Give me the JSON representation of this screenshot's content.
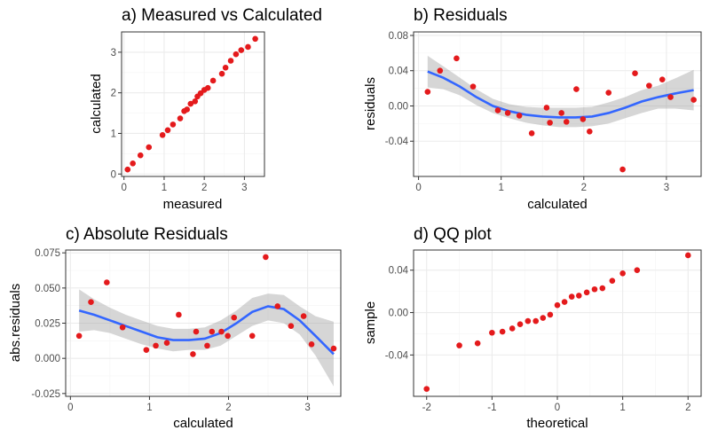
{
  "chart_data": [
    {
      "id": "a",
      "type": "scatter",
      "title": "a) Measured vs Calculated",
      "xlabel": "measured",
      "ylabel": "calculated",
      "xlim": [
        -0.06,
        3.5
      ],
      "ylim": [
        -0.06,
        3.5
      ],
      "xticks": [
        0,
        1,
        2,
        3
      ],
      "yticks": [
        0,
        1,
        2,
        3
      ],
      "xtick_labels": [
        "0",
        "1",
        "2",
        "3"
      ],
      "ytick_labels": [
        "0",
        "1",
        "2",
        "3"
      ],
      "grid": true,
      "points": [
        [
          0.09,
          0.11
        ],
        [
          0.22,
          0.26
        ],
        [
          0.41,
          0.46
        ],
        [
          0.62,
          0.66
        ],
        [
          0.96,
          0.96
        ],
        [
          1.09,
          1.08
        ],
        [
          1.22,
          1.22
        ],
        [
          1.4,
          1.37
        ],
        [
          1.5,
          1.55
        ],
        [
          1.57,
          1.59
        ],
        [
          1.66,
          1.73
        ],
        [
          1.77,
          1.79
        ],
        [
          1.83,
          1.91
        ],
        [
          1.91,
          1.99
        ],
        [
          2.0,
          2.07
        ],
        [
          2.09,
          2.12
        ],
        [
          2.22,
          2.3
        ],
        [
          2.44,
          2.47
        ],
        [
          2.53,
          2.62
        ],
        [
          2.66,
          2.79
        ],
        [
          2.79,
          2.95
        ],
        [
          2.92,
          3.05
        ],
        [
          3.09,
          3.13
        ],
        [
          3.27,
          3.33
        ]
      ]
    },
    {
      "id": "b",
      "type": "scatter",
      "title": "b) Residuals",
      "xlabel": "calculated",
      "ylabel": "residuals",
      "xlim": [
        -0.06,
        3.42
      ],
      "ylim": [
        -0.08,
        0.084
      ],
      "xticks": [
        0,
        1,
        2,
        3
      ],
      "yticks": [
        -0.04,
        0.0,
        0.04,
        0.08
      ],
      "xtick_labels": [
        "0",
        "1",
        "2",
        "3"
      ],
      "ytick_labels": [
        "-0.04",
        "0.00",
        "0.04",
        "0.08"
      ],
      "grid": true,
      "points": [
        [
          0.11,
          0.016
        ],
        [
          0.26,
          0.04
        ],
        [
          0.46,
          0.054
        ],
        [
          0.66,
          0.022
        ],
        [
          0.96,
          -0.005
        ],
        [
          1.08,
          -0.008
        ],
        [
          1.22,
          -0.011
        ],
        [
          1.37,
          -0.031
        ],
        [
          1.55,
          -0.002
        ],
        [
          1.59,
          -0.019
        ],
        [
          1.73,
          -0.008
        ],
        [
          1.79,
          -0.018
        ],
        [
          1.91,
          0.019
        ],
        [
          1.99,
          -0.015
        ],
        [
          2.07,
          -0.029
        ],
        [
          2.3,
          0.015
        ],
        [
          2.47,
          -0.072
        ],
        [
          2.62,
          0.037
        ],
        [
          2.79,
          0.023
        ],
        [
          2.95,
          0.03
        ],
        [
          3.05,
          0.01
        ],
        [
          3.33,
          0.007
        ]
      ],
      "smooth": {
        "x": [
          0.11,
          0.3,
          0.5,
          0.7,
          0.9,
          1.1,
          1.3,
          1.5,
          1.7,
          1.9,
          2.1,
          2.3,
          2.5,
          2.7,
          2.9,
          3.1,
          3.33
        ],
        "y": [
          0.039,
          0.032,
          0.022,
          0.01,
          0.0,
          -0.006,
          -0.01,
          -0.012,
          -0.013,
          -0.013,
          -0.012,
          -0.008,
          -0.002,
          0.005,
          0.01,
          0.014,
          0.018
        ],
        "lo": [
          0.021,
          0.019,
          0.012,
          0.001,
          -0.008,
          -0.014,
          -0.019,
          -0.022,
          -0.024,
          -0.024,
          -0.023,
          -0.02,
          -0.014,
          -0.008,
          -0.003,
          -0.003,
          -0.005
        ],
        "hi": [
          0.057,
          0.045,
          0.032,
          0.019,
          0.008,
          0.002,
          -0.001,
          -0.002,
          -0.002,
          -0.002,
          -0.001,
          0.004,
          0.01,
          0.018,
          0.023,
          0.031,
          0.041
        ]
      }
    },
    {
      "id": "c",
      "type": "scatter",
      "title": "c) Absolute Residuals",
      "xlabel": "calculated",
      "ylabel": "abs.residuals",
      "xlim": [
        -0.06,
        3.42
      ],
      "ylim": [
        -0.027,
        0.077
      ],
      "xticks": [
        0,
        1,
        2,
        3
      ],
      "yticks": [
        -0.025,
        0.0,
        0.025,
        0.05,
        0.075
      ],
      "xtick_labels": [
        "0",
        "1",
        "2",
        "3"
      ],
      "ytick_labels": [
        "-0.025",
        "0.000",
        "0.025",
        "0.050",
        "0.075"
      ],
      "grid": true,
      "points": [
        [
          0.11,
          0.016
        ],
        [
          0.26,
          0.04
        ],
        [
          0.46,
          0.054
        ],
        [
          0.66,
          0.022
        ],
        [
          0.96,
          0.006
        ],
        [
          1.08,
          0.009
        ],
        [
          1.22,
          0.011
        ],
        [
          1.37,
          0.031
        ],
        [
          1.55,
          0.003
        ],
        [
          1.59,
          0.019
        ],
        [
          1.73,
          0.009
        ],
        [
          1.79,
          0.019
        ],
        [
          1.91,
          0.019
        ],
        [
          1.99,
          0.016
        ],
        [
          2.07,
          0.029
        ],
        [
          2.3,
          0.016
        ],
        [
          2.47,
          0.072
        ],
        [
          2.62,
          0.037
        ],
        [
          2.79,
          0.023
        ],
        [
          2.95,
          0.03
        ],
        [
          3.05,
          0.01
        ],
        [
          3.33,
          0.007
        ]
      ],
      "smooth": {
        "x": [
          0.11,
          0.3,
          0.5,
          0.7,
          0.9,
          1.1,
          1.3,
          1.5,
          1.7,
          1.9,
          2.1,
          2.3,
          2.5,
          2.7,
          2.9,
          3.1,
          3.33
        ],
        "y": [
          0.034,
          0.031,
          0.027,
          0.023,
          0.019,
          0.015,
          0.013,
          0.013,
          0.014,
          0.018,
          0.025,
          0.033,
          0.037,
          0.035,
          0.027,
          0.016,
          0.003
        ],
        "lo": [
          0.019,
          0.02,
          0.018,
          0.014,
          0.01,
          0.007,
          0.005,
          0.006,
          0.006,
          0.009,
          0.016,
          0.023,
          0.027,
          0.025,
          0.017,
          0.002,
          -0.02
        ],
        "hi": [
          0.049,
          0.042,
          0.036,
          0.031,
          0.027,
          0.023,
          0.021,
          0.021,
          0.022,
          0.027,
          0.034,
          0.043,
          0.046,
          0.045,
          0.037,
          0.03,
          0.026
        ]
      }
    },
    {
      "id": "d",
      "type": "scatter",
      "title": "d) QQ plot",
      "xlabel": "theoretical",
      "ylabel": "sample",
      "xlim": [
        -2.2,
        2.2
      ],
      "ylim": [
        -0.079,
        0.059
      ],
      "xticks": [
        -2,
        -1,
        0,
        1,
        2
      ],
      "yticks": [
        -0.04,
        0.0,
        0.04
      ],
      "xtick_labels": [
        "-2",
        "-1",
        "0",
        "1",
        "2"
      ],
      "ytick_labels": [
        "-0.04",
        "0.00",
        "0.04"
      ],
      "grid": true,
      "points": [
        [
          -2.0,
          -0.072
        ],
        [
          -1.5,
          -0.031
        ],
        [
          -1.22,
          -0.029
        ],
        [
          -1.0,
          -0.019
        ],
        [
          -0.84,
          -0.018
        ],
        [
          -0.69,
          -0.015
        ],
        [
          -0.57,
          -0.011
        ],
        [
          -0.45,
          -0.008
        ],
        [
          -0.33,
          -0.008
        ],
        [
          -0.22,
          -0.005
        ],
        [
          -0.11,
          -0.002
        ],
        [
          0.0,
          0.007
        ],
        [
          0.11,
          0.01
        ],
        [
          0.22,
          0.015
        ],
        [
          0.33,
          0.016
        ],
        [
          0.45,
          0.019
        ],
        [
          0.57,
          0.022
        ],
        [
          0.69,
          0.023
        ],
        [
          0.84,
          0.03
        ],
        [
          1.0,
          0.037
        ],
        [
          1.22,
          0.04
        ],
        [
          2.0,
          0.054
        ]
      ]
    }
  ]
}
